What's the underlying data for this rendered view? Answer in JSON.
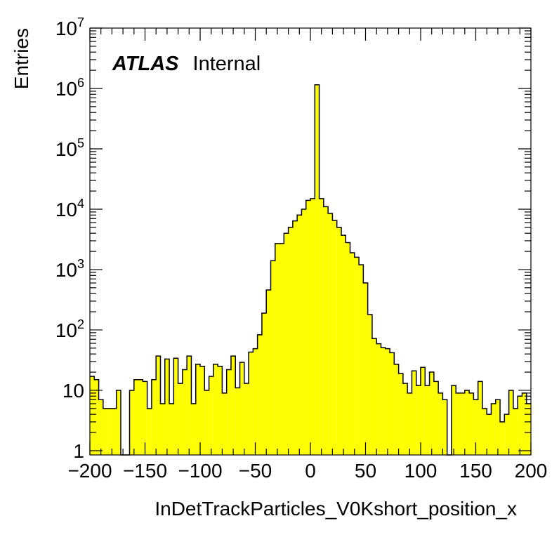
{
  "chart_data": {
    "type": "histogram",
    "label": {
      "bold": "ATLAS",
      "normal": "Internal"
    },
    "xlabel": "InDetTrackParticles_V0Kshort_position_x",
    "ylabel": "Entries",
    "xlim": [
      -200,
      200
    ],
    "ylim": [
      0.85,
      10000000
    ],
    "yscale": "log",
    "bin_width": 4,
    "fill_color": "#ffff00",
    "line_color": "#000000",
    "x_ticks": [
      "−200",
      "−150",
      "−100",
      "−50",
      "0",
      "50",
      "100",
      "150",
      "200"
    ],
    "y_ticks": [
      {
        "base": "1",
        "exp": ""
      },
      {
        "base": "10",
        "exp": ""
      },
      {
        "base": "10",
        "exp": "2"
      },
      {
        "base": "10",
        "exp": "3"
      },
      {
        "base": "10",
        "exp": "4"
      },
      {
        "base": "10",
        "exp": "5"
      },
      {
        "base": "10",
        "exp": "6"
      },
      {
        "base": "10",
        "exp": "7"
      }
    ],
    "x_tick_values": [
      -200,
      -150,
      -100,
      -50,
      0,
      50,
      100,
      150,
      200
    ],
    "y_tick_values": [
      1,
      10,
      100,
      1000,
      10000,
      100000,
      1000000,
      10000000
    ],
    "bin_edges_start": -200,
    "values": [
      17,
      15,
      7,
      5,
      5,
      5,
      10,
      0,
      0,
      10,
      15,
      15,
      14,
      5,
      15,
      37,
      6,
      33,
      6,
      34,
      13,
      22,
      37,
      6,
      27,
      25,
      10,
      17,
      27,
      25,
      9,
      22,
      37,
      11,
      29,
      13,
      43,
      49,
      83,
      190,
      460,
      1400,
      2700,
      2700,
      4000,
      5000,
      6400,
      8000,
      10000,
      14000,
      15000,
      1150000,
      15000,
      11000,
      8500,
      6500,
      5000,
      3700,
      2800,
      1900,
      1600,
      1200,
      600,
      180,
      72,
      59,
      51,
      49,
      42,
      27,
      19,
      13,
      9,
      21,
      12,
      24,
      12,
      20,
      14,
      9,
      7,
      0,
      12,
      9,
      9,
      10,
      9,
      7,
      14,
      5,
      4,
      6,
      7,
      3,
      4,
      10,
      5,
      8,
      9,
      6
    ]
  }
}
